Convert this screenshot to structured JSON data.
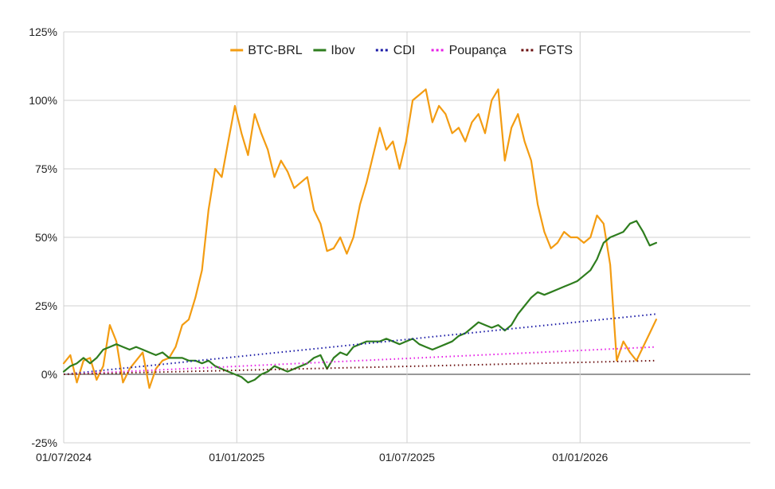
{
  "chart_data": {
    "type": "line",
    "title": "",
    "xlabel": "",
    "ylabel": "",
    "ylim": [
      -25,
      125
    ],
    "xlim": [
      "2024-07-01",
      "2026-07-01"
    ],
    "y_ticks": [
      -25,
      0,
      25,
      50,
      75,
      100,
      125
    ],
    "y_tick_labels": [
      "-25%",
      "0%",
      "25%",
      "50%",
      "75%",
      "100%",
      "125%"
    ],
    "x_ticks": [
      "2024-07-01",
      "2025-01-01",
      "2025-07-01",
      "2026-01-01"
    ],
    "x_tick_labels": [
      "01/07/2024",
      "01/01/2025",
      "01/07/2025",
      "01/01/2026"
    ],
    "grid": true,
    "legend_position": "top",
    "series": [
      {
        "name": "BTC-BRL",
        "color": "#f39c12",
        "style": "solid",
        "points": [
          [
            "2024-07-01",
            4
          ],
          [
            "2024-07-08",
            7
          ],
          [
            "2024-07-15",
            -3
          ],
          [
            "2024-07-22",
            5
          ],
          [
            "2024-07-29",
            6
          ],
          [
            "2024-08-05",
            -2
          ],
          [
            "2024-08-12",
            3
          ],
          [
            "2024-08-19",
            18
          ],
          [
            "2024-08-26",
            12
          ],
          [
            "2024-09-02",
            -3
          ],
          [
            "2024-09-09",
            2
          ],
          [
            "2024-09-16",
            5
          ],
          [
            "2024-09-23",
            8
          ],
          [
            "2024-09-30",
            -5
          ],
          [
            "2024-10-07",
            2
          ],
          [
            "2024-10-14",
            5
          ],
          [
            "2024-10-21",
            6
          ],
          [
            "2024-10-28",
            10
          ],
          [
            "2024-11-04",
            18
          ],
          [
            "2024-11-11",
            20
          ],
          [
            "2024-11-18",
            28
          ],
          [
            "2024-11-25",
            38
          ],
          [
            "2024-12-02",
            60
          ],
          [
            "2024-12-09",
            75
          ],
          [
            "2024-12-16",
            72
          ],
          [
            "2024-12-23",
            85
          ],
          [
            "2024-12-30",
            98
          ],
          [
            "2025-01-06",
            88
          ],
          [
            "2025-01-13",
            80
          ],
          [
            "2025-01-20",
            95
          ],
          [
            "2025-01-27",
            88
          ],
          [
            "2025-02-03",
            82
          ],
          [
            "2025-02-10",
            72
          ],
          [
            "2025-02-17",
            78
          ],
          [
            "2025-02-24",
            74
          ],
          [
            "2025-03-03",
            68
          ],
          [
            "2025-03-10",
            70
          ],
          [
            "2025-03-17",
            72
          ],
          [
            "2025-03-24",
            60
          ],
          [
            "2025-03-31",
            55
          ],
          [
            "2025-04-07",
            45
          ],
          [
            "2025-04-14",
            46
          ],
          [
            "2025-04-21",
            50
          ],
          [
            "2025-04-28",
            44
          ],
          [
            "2025-05-05",
            50
          ],
          [
            "2025-05-12",
            62
          ],
          [
            "2025-05-19",
            70
          ],
          [
            "2025-05-26",
            80
          ],
          [
            "2025-06-02",
            90
          ],
          [
            "2025-06-09",
            82
          ],
          [
            "2025-06-16",
            85
          ],
          [
            "2025-06-23",
            75
          ],
          [
            "2025-06-30",
            85
          ],
          [
            "2025-07-07",
            100
          ],
          [
            "2025-07-14",
            102
          ],
          [
            "2025-07-21",
            104
          ],
          [
            "2025-07-28",
            92
          ],
          [
            "2025-08-04",
            98
          ],
          [
            "2025-08-11",
            95
          ],
          [
            "2025-08-18",
            88
          ],
          [
            "2025-08-25",
            90
          ],
          [
            "2025-09-01",
            85
          ],
          [
            "2025-09-08",
            92
          ],
          [
            "2025-09-15",
            95
          ],
          [
            "2025-09-22",
            88
          ],
          [
            "2025-09-29",
            100
          ],
          [
            "2025-10-06",
            104
          ],
          [
            "2025-10-13",
            78
          ],
          [
            "2025-10-20",
            90
          ],
          [
            "2025-10-27",
            95
          ],
          [
            "2025-11-03",
            85
          ],
          [
            "2025-11-10",
            78
          ],
          [
            "2025-11-17",
            62
          ],
          [
            "2025-11-24",
            52
          ],
          [
            "2025-12-01",
            46
          ],
          [
            "2025-12-08",
            48
          ],
          [
            "2025-12-15",
            52
          ],
          [
            "2025-12-22",
            50
          ],
          [
            "2025-12-29",
            50
          ],
          [
            "2026-01-05",
            48
          ],
          [
            "2026-01-12",
            50
          ],
          [
            "2026-01-19",
            58
          ],
          [
            "2026-01-26",
            55
          ],
          [
            "2026-02-02",
            40
          ],
          [
            "2026-02-09",
            5
          ],
          [
            "2026-02-16",
            12
          ],
          [
            "2026-02-23",
            8
          ],
          [
            "2026-03-02",
            5
          ],
          [
            "2026-03-09",
            10
          ],
          [
            "2026-03-16",
            15
          ],
          [
            "2026-03-23",
            20
          ]
        ]
      },
      {
        "name": "Ibov",
        "color": "#2e7d1e",
        "style": "solid",
        "points": [
          [
            "2024-07-01",
            1
          ],
          [
            "2024-07-08",
            3
          ],
          [
            "2024-07-15",
            4
          ],
          [
            "2024-07-22",
            6
          ],
          [
            "2024-07-29",
            4
          ],
          [
            "2024-08-05",
            6
          ],
          [
            "2024-08-12",
            9
          ],
          [
            "2024-08-19",
            10
          ],
          [
            "2024-08-26",
            11
          ],
          [
            "2024-09-02",
            10
          ],
          [
            "2024-09-09",
            9
          ],
          [
            "2024-09-16",
            10
          ],
          [
            "2024-09-23",
            9
          ],
          [
            "2024-09-30",
            8
          ],
          [
            "2024-10-07",
            7
          ],
          [
            "2024-10-14",
            8
          ],
          [
            "2024-10-21",
            6
          ],
          [
            "2024-10-28",
            6
          ],
          [
            "2024-11-04",
            6
          ],
          [
            "2024-11-11",
            5
          ],
          [
            "2024-11-18",
            5
          ],
          [
            "2024-11-25",
            4
          ],
          [
            "2024-12-02",
            5
          ],
          [
            "2024-12-09",
            3
          ],
          [
            "2024-12-16",
            2
          ],
          [
            "2024-12-23",
            1
          ],
          [
            "2024-12-30",
            0
          ],
          [
            "2025-01-06",
            -1
          ],
          [
            "2025-01-13",
            -3
          ],
          [
            "2025-01-20",
            -2
          ],
          [
            "2025-01-27",
            0
          ],
          [
            "2025-02-03",
            1
          ],
          [
            "2025-02-10",
            3
          ],
          [
            "2025-02-17",
            2
          ],
          [
            "2025-02-24",
            1
          ],
          [
            "2025-03-03",
            2
          ],
          [
            "2025-03-10",
            3
          ],
          [
            "2025-03-17",
            4
          ],
          [
            "2025-03-24",
            6
          ],
          [
            "2025-03-31",
            7
          ],
          [
            "2025-04-07",
            2
          ],
          [
            "2025-04-14",
            6
          ],
          [
            "2025-04-21",
            8
          ],
          [
            "2025-04-28",
            7
          ],
          [
            "2025-05-05",
            10
          ],
          [
            "2025-05-12",
            11
          ],
          [
            "2025-05-19",
            12
          ],
          [
            "2025-05-26",
            12
          ],
          [
            "2025-06-02",
            12
          ],
          [
            "2025-06-09",
            13
          ],
          [
            "2025-06-16",
            12
          ],
          [
            "2025-06-23",
            11
          ],
          [
            "2025-06-30",
            12
          ],
          [
            "2025-07-07",
            13
          ],
          [
            "2025-07-14",
            11
          ],
          [
            "2025-07-21",
            10
          ],
          [
            "2025-07-28",
            9
          ],
          [
            "2025-08-04",
            10
          ],
          [
            "2025-08-11",
            11
          ],
          [
            "2025-08-18",
            12
          ],
          [
            "2025-08-25",
            14
          ],
          [
            "2025-09-01",
            15
          ],
          [
            "2025-09-08",
            17
          ],
          [
            "2025-09-15",
            19
          ],
          [
            "2025-09-22",
            18
          ],
          [
            "2025-09-29",
            17
          ],
          [
            "2025-10-06",
            18
          ],
          [
            "2025-10-13",
            16
          ],
          [
            "2025-10-20",
            18
          ],
          [
            "2025-10-27",
            22
          ],
          [
            "2025-11-03",
            25
          ],
          [
            "2025-11-10",
            28
          ],
          [
            "2025-11-17",
            30
          ],
          [
            "2025-11-24",
            29
          ],
          [
            "2025-12-01",
            30
          ],
          [
            "2025-12-08",
            31
          ],
          [
            "2025-12-15",
            32
          ],
          [
            "2025-12-22",
            33
          ],
          [
            "2025-12-29",
            34
          ],
          [
            "2026-01-05",
            36
          ],
          [
            "2026-01-12",
            38
          ],
          [
            "2026-01-19",
            42
          ],
          [
            "2026-01-26",
            48
          ],
          [
            "2026-02-02",
            50
          ],
          [
            "2026-02-09",
            51
          ],
          [
            "2026-02-16",
            52
          ],
          [
            "2026-02-23",
            55
          ],
          [
            "2026-03-02",
            56
          ],
          [
            "2026-03-09",
            52
          ],
          [
            "2026-03-16",
            47
          ],
          [
            "2026-03-23",
            48
          ]
        ]
      },
      {
        "name": "CDI",
        "color": "#1a1aa6",
        "style": "dotted",
        "points": [
          [
            "2024-07-01",
            0
          ],
          [
            "2026-03-23",
            22
          ]
        ]
      },
      {
        "name": "Poupança",
        "color": "#e61ee6",
        "style": "dotted",
        "points": [
          [
            "2024-07-01",
            0
          ],
          [
            "2026-03-23",
            10
          ]
        ]
      },
      {
        "name": "FGTS",
        "color": "#6b1010",
        "style": "dotted",
        "points": [
          [
            "2024-07-01",
            0
          ],
          [
            "2026-03-23",
            5
          ]
        ]
      }
    ]
  }
}
